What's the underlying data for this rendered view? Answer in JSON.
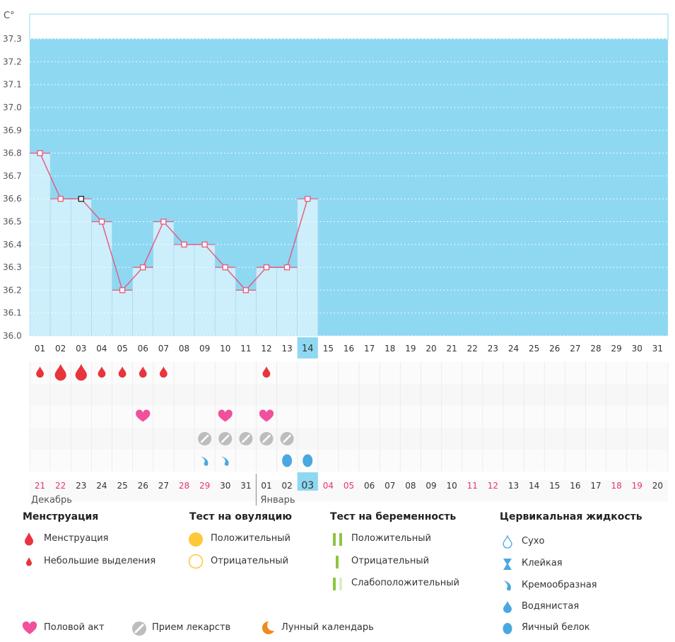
{
  "chart_data": {
    "type": "line",
    "unit_label": "C°",
    "ylim": [
      36.0,
      37.3
    ],
    "y_ticks": [
      "36.0",
      "36.1",
      "36.2",
      "36.3",
      "36.4",
      "36.5",
      "36.6",
      "36.7",
      "36.8",
      "36.9",
      "37.0",
      "37.1",
      "37.2",
      "37.3"
    ],
    "days": [
      "01",
      "02",
      "03",
      "04",
      "05",
      "06",
      "07",
      "08",
      "09",
      "10",
      "11",
      "12",
      "13",
      "14",
      "15",
      "16",
      "17",
      "18",
      "19",
      "20",
      "21",
      "22",
      "23",
      "24",
      "25",
      "26",
      "27",
      "28",
      "29",
      "30",
      "31"
    ],
    "current_day": "14",
    "temperatures": [
      36.8,
      36.6,
      36.6,
      36.5,
      36.2,
      36.3,
      36.5,
      36.4,
      36.4,
      36.3,
      36.2,
      36.3,
      36.3,
      36.6
    ],
    "marked_point_index": 2,
    "menstruation": [
      "small",
      "full",
      "full",
      "small",
      "small",
      "small",
      "small",
      "",
      "",
      "",
      "",
      "small",
      "",
      "",
      "",
      "",
      "",
      "",
      "",
      "",
      "",
      "",
      "",
      "",
      "",
      "",
      "",
      "",
      "",
      "",
      ""
    ],
    "intercourse": [
      6,
      10,
      12
    ],
    "medication": [
      9,
      10,
      11,
      12,
      13
    ],
    "cervical_fluid": [
      "",
      "",
      "",
      "",
      "",
      "",
      "",
      "",
      "creamy",
      "creamy",
      "",
      "",
      "egg_white",
      "egg_white",
      "",
      "",
      "",
      "",
      "",
      "",
      "",
      "",
      "",
      "",
      "",
      "",
      "",
      "",
      "",
      "",
      ""
    ],
    "dates": [
      "21",
      "22",
      "23",
      "24",
      "25",
      "26",
      "27",
      "28",
      "29",
      "30",
      "31",
      "01",
      "02",
      "03",
      "04",
      "05",
      "06",
      "07",
      "08",
      "09",
      "10",
      "11",
      "12",
      "13",
      "14",
      "15",
      "16",
      "17",
      "18",
      "19",
      "20"
    ],
    "date_weekend": [
      true,
      true,
      false,
      false,
      false,
      false,
      false,
      true,
      true,
      false,
      false,
      false,
      false,
      false,
      true,
      true,
      false,
      false,
      false,
      false,
      false,
      true,
      true,
      false,
      false,
      false,
      false,
      false,
      true,
      true,
      false
    ],
    "month_left": "Декабрь",
    "month_right": "Январь"
  },
  "legend": {
    "menstruation": {
      "title": "Менструация",
      "items": [
        "Менструация",
        "Небольшие выделения"
      ]
    },
    "ovulation": {
      "title": "Тест на овуляцию",
      "items": [
        "Положительный",
        "Отрицательный"
      ]
    },
    "pregnancy": {
      "title": "Тест на беременность",
      "items": [
        "Положительный",
        "Отрицательный",
        "Слабоположительный"
      ]
    },
    "cervical": {
      "title": "Цервикальная жидкость",
      "items": [
        "Сухо",
        "Клейкая",
        "Кремообразная",
        "Водянистая",
        "Яичный белок"
      ]
    },
    "bottom": {
      "intercourse": "Половой акт",
      "medication": "Прием лекарств",
      "lunar": "Лунный календарь"
    }
  },
  "colors": {
    "sky": "#8ed8f2",
    "col": "#cdeefb",
    "line": "#e8577a",
    "blood": "#e8353d",
    "heart": "#f0509c",
    "pill": "#bdbdbd",
    "fluid": "#4aa8e0",
    "ov_pos": "#ffc838",
    "preg": "#8dc63f",
    "moon": "#f08a1e",
    "weekend": "#e8356a"
  }
}
